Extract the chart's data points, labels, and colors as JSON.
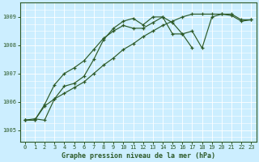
{
  "title": "Graphe pression niveau de la mer (hPa)",
  "bg_color": "#cceeff",
  "plot_bg": "#cceeff",
  "line_color": "#2d5a27",
  "grid_color": "#ffffff",
  "xlim": [
    -0.5,
    23.5
  ],
  "ylim": [
    1004.6,
    1009.5
  ],
  "yticks": [
    1005,
    1006,
    1007,
    1008,
    1009
  ],
  "xtick_labels": [
    "0",
    "1",
    "2",
    "3",
    "4",
    "5",
    "6",
    "7",
    "8",
    "9",
    "10",
    "11",
    "12",
    "13",
    "14",
    "15",
    "16",
    "17",
    "18",
    "19",
    "20",
    "21",
    "22",
    "23"
  ],
  "series": [
    {
      "x": [
        0,
        1,
        2,
        3,
        4,
        5,
        6,
        7,
        8,
        9,
        10,
        11,
        12,
        13,
        14,
        15,
        16,
        17,
        18,
        19,
        20,
        21,
        22,
        23
      ],
      "y": [
        1005.35,
        1005.4,
        1005.35,
        1006.1,
        1006.55,
        1006.65,
        1006.9,
        1007.5,
        1008.2,
        1008.6,
        1008.85,
        1008.95,
        1008.72,
        1009.0,
        1009.0,
        1008.8,
        1008.4,
        1008.5,
        1007.9,
        1009.0,
        1009.1,
        1009.05,
        1008.85,
        1008.9
      ],
      "linestyle": "-"
    },
    {
      "x": [
        0,
        1,
        2,
        3,
        4,
        5,
        6,
        7,
        8,
        9,
        10,
        11,
        12,
        13,
        14,
        15,
        16,
        17
      ],
      "y": [
        1005.35,
        1005.35,
        1005.9,
        1006.6,
        1007.0,
        1007.2,
        1007.45,
        1007.85,
        1008.25,
        1008.5,
        1008.7,
        1008.6,
        1008.6,
        1008.8,
        1009.0,
        1008.4,
        1008.4,
        1007.9
      ],
      "linestyle": "-"
    },
    {
      "x": [
        0,
        1,
        2,
        3,
        4,
        5,
        6,
        7,
        8,
        9,
        10,
        11,
        12,
        13,
        14,
        15,
        16,
        17,
        18,
        19,
        20,
        21,
        22,
        23
      ],
      "y": [
        1005.35,
        1005.35,
        1005.85,
        1006.1,
        1006.3,
        1006.5,
        1006.7,
        1007.0,
        1007.3,
        1007.55,
        1007.85,
        1008.05,
        1008.3,
        1008.5,
        1008.7,
        1008.85,
        1009.0,
        1009.1,
        1009.1,
        1009.1,
        1009.1,
        1009.1,
        1008.9,
        1008.9
      ],
      "linestyle": "-"
    }
  ]
}
